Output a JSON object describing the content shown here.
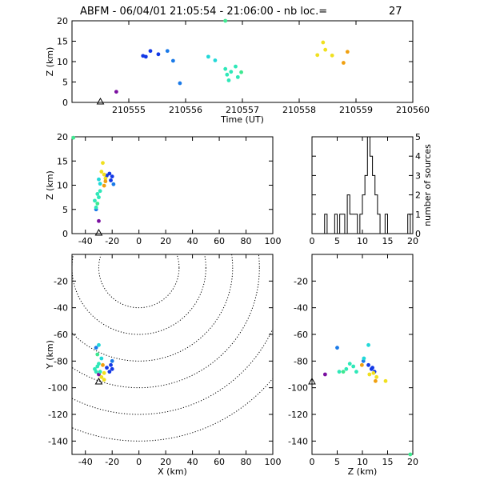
{
  "title": {
    "station": "ABFM",
    "date": "06/04/01",
    "start": "21:05:54",
    "end": "21:06:00",
    "count_label": "nb loc.=",
    "count": "27"
  },
  "colors": {
    "purple": "#7a0fa0",
    "blue": "#1238e6",
    "mid_blue": "#1a7ae8",
    "cyan": "#22d8d8",
    "teal": "#2ee8b8",
    "green": "#3ee890",
    "yellow": "#f0e020",
    "orange": "#f0a010"
  },
  "chart_data": [
    {
      "id": "time_height",
      "type": "scatter",
      "xlabel": "Time (UT)",
      "ylabel": "Z (km)",
      "xlim": [
        210554.0,
        210560.0
      ],
      "ylim": [
        0,
        20
      ],
      "xticks": [
        210555,
        210556,
        210557,
        210558,
        210559,
        210560
      ],
      "yticks": [
        0,
        5,
        10,
        15,
        20
      ],
      "points": [
        {
          "x": 210554.78,
          "y": 2.6,
          "c": "purple"
        },
        {
          "x": 210555.25,
          "y": 11.4,
          "c": "blue"
        },
        {
          "x": 210555.3,
          "y": 11.2,
          "c": "blue"
        },
        {
          "x": 210555.38,
          "y": 12.6,
          "c": "blue"
        },
        {
          "x": 210555.52,
          "y": 11.8,
          "c": "blue"
        },
        {
          "x": 210555.68,
          "y": 12.6,
          "c": "mid_blue"
        },
        {
          "x": 210555.78,
          "y": 10.2,
          "c": "mid_blue"
        },
        {
          "x": 210555.9,
          "y": 4.7,
          "c": "mid_blue"
        },
        {
          "x": 210556.4,
          "y": 11.2,
          "c": "cyan"
        },
        {
          "x": 210556.52,
          "y": 10.3,
          "c": "cyan"
        },
        {
          "x": 210556.7,
          "y": 8.2,
          "c": "teal"
        },
        {
          "x": 210556.73,
          "y": 6.8,
          "c": "teal"
        },
        {
          "x": 210556.76,
          "y": 5.4,
          "c": "teal"
        },
        {
          "x": 210556.8,
          "y": 7.5,
          "c": "teal"
        },
        {
          "x": 210556.88,
          "y": 8.8,
          "c": "teal"
        },
        {
          "x": 210556.92,
          "y": 6.2,
          "c": "teal"
        },
        {
          "x": 210556.98,
          "y": 7.4,
          "c": "green"
        },
        {
          "x": 210556.7,
          "y": 20.0,
          "c": "green"
        },
        {
          "x": 210558.32,
          "y": 11.6,
          "c": "yellow"
        },
        {
          "x": 210558.42,
          "y": 14.7,
          "c": "yellow"
        },
        {
          "x": 210558.46,
          "y": 12.9,
          "c": "yellow"
        },
        {
          "x": 210558.58,
          "y": 11.5,
          "c": "yellow"
        },
        {
          "x": 210558.78,
          "y": 9.7,
          "c": "orange"
        },
        {
          "x": 210558.85,
          "y": 12.4,
          "c": "orange"
        }
      ],
      "station": {
        "x": 210554.5,
        "y": 0
      }
    },
    {
      "id": "x_height",
      "type": "scatter",
      "xlabel": "",
      "ylabel": "Z (km)",
      "xlim": [
        -50,
        100
      ],
      "ylim": [
        0,
        20
      ],
      "xticks": [
        -40,
        -20,
        0,
        20,
        40,
        60,
        80,
        100
      ],
      "yticks": [
        0,
        5,
        10,
        15,
        20
      ],
      "points": [
        {
          "x": -30,
          "y": 2.6,
          "c": "purple"
        },
        {
          "x": -20,
          "y": 11.8,
          "c": "blue"
        },
        {
          "x": -21,
          "y": 11.0,
          "c": "blue"
        },
        {
          "x": -22,
          "y": 12.4,
          "c": "blue"
        },
        {
          "x": -24,
          "y": 12.0,
          "c": "blue"
        },
        {
          "x": -19,
          "y": 10.2,
          "c": "mid_blue"
        },
        {
          "x": -32,
          "y": 5.0,
          "c": "mid_blue"
        },
        {
          "x": -30,
          "y": 11.2,
          "c": "cyan"
        },
        {
          "x": -29,
          "y": 10.3,
          "c": "cyan"
        },
        {
          "x": -31,
          "y": 8.2,
          "c": "teal"
        },
        {
          "x": -33,
          "y": 6.8,
          "c": "teal"
        },
        {
          "x": -32,
          "y": 5.4,
          "c": "teal"
        },
        {
          "x": -30,
          "y": 7.5,
          "c": "teal"
        },
        {
          "x": -29,
          "y": 8.8,
          "c": "teal"
        },
        {
          "x": -31,
          "y": 6.2,
          "c": "green"
        },
        {
          "x": -49,
          "y": 19.8,
          "c": "green"
        },
        {
          "x": -28,
          "y": 12.8,
          "c": "yellow"
        },
        {
          "x": -27,
          "y": 14.6,
          "c": "yellow"
        },
        {
          "x": -26,
          "y": 12.2,
          "c": "yellow"
        },
        {
          "x": -25,
          "y": 11.4,
          "c": "yellow"
        },
        {
          "x": -26,
          "y": 9.9,
          "c": "orange"
        },
        {
          "x": -25,
          "y": 10.8,
          "c": "orange"
        }
      ],
      "station": {
        "x": -30,
        "y": 0
      }
    },
    {
      "id": "height_histogram",
      "type": "bar",
      "xlabel": "",
      "ylabel": "number of sources",
      "xlim": [
        0,
        20
      ],
      "ylim": [
        0,
        5
      ],
      "xticks": [
        0,
        5,
        10,
        15,
        20
      ],
      "yticks": [
        0,
        1,
        2,
        3,
        4,
        5
      ],
      "bin_width": 0.5,
      "bin_starts": [
        0,
        0.5,
        1,
        1.5,
        2,
        2.5,
        3,
        3.5,
        4,
        4.5,
        5,
        5.5,
        6,
        6.5,
        7,
        7.5,
        8,
        8.5,
        9,
        9.5,
        10,
        10.5,
        11,
        11.5,
        12,
        12.5,
        13,
        13.5,
        14,
        14.5,
        15,
        15.5,
        16,
        16.5,
        17,
        17.5,
        18,
        18.5,
        19,
        19.5
      ],
      "values": [
        0,
        0,
        0,
        0,
        0,
        1,
        0,
        0,
        0,
        1,
        0,
        1,
        1,
        0,
        2,
        1,
        1,
        1,
        0,
        1,
        2,
        3,
        5,
        4,
        3,
        2,
        1,
        0,
        0,
        1,
        0,
        0,
        0,
        0,
        0,
        0,
        0,
        0,
        1,
        0
      ]
    },
    {
      "id": "plan_view",
      "type": "scatter",
      "xlabel": "X (km)",
      "ylabel": "Y (km)",
      "xlim": [
        -50,
        100
      ],
      "ylim": [
        -150,
        0
      ],
      "xticks": [
        -40,
        -20,
        0,
        20,
        40,
        60,
        80,
        100
      ],
      "yticks": [
        -140,
        -120,
        -100,
        -80,
        -60,
        -40,
        -20
      ],
      "contour_center": {
        "x": 0,
        "y": -10
      },
      "contour_radii": [
        30,
        50,
        70,
        90,
        110,
        130
      ],
      "points": [
        {
          "x": -30,
          "y": -90,
          "c": "purple"
        },
        {
          "x": -20,
          "y": -86,
          "c": "blue"
        },
        {
          "x": -21,
          "y": -83,
          "c": "blue"
        },
        {
          "x": -22,
          "y": -88,
          "c": "blue"
        },
        {
          "x": -24,
          "y": -85,
          "c": "blue"
        },
        {
          "x": -20,
          "y": -80,
          "c": "mid_blue"
        },
        {
          "x": -32,
          "y": -70,
          "c": "mid_blue"
        },
        {
          "x": -30,
          "y": -68,
          "c": "cyan"
        },
        {
          "x": -28,
          "y": -78,
          "c": "cyan"
        },
        {
          "x": -31,
          "y": -84,
          "c": "teal"
        },
        {
          "x": -33,
          "y": -86,
          "c": "teal"
        },
        {
          "x": -32,
          "y": -88,
          "c": "teal"
        },
        {
          "x": -30,
          "y": -82,
          "c": "teal"
        },
        {
          "x": -29,
          "y": -88,
          "c": "teal"
        },
        {
          "x": -31,
          "y": -75,
          "c": "green"
        },
        {
          "x": -28,
          "y": -92,
          "c": "yellow"
        },
        {
          "x": -26,
          "y": -89,
          "c": "yellow"
        },
        {
          "x": -27,
          "y": -83,
          "c": "orange"
        },
        {
          "x": -26,
          "y": -94,
          "c": "yellow"
        }
      ],
      "station": {
        "x": -30,
        "y": -96
      }
    },
    {
      "id": "height_y",
      "type": "scatter",
      "xlabel": "Z (km)",
      "ylabel": "",
      "xlim": [
        0,
        20
      ],
      "ylim": [
        -150,
        0
      ],
      "xticks": [
        0,
        5,
        10,
        15,
        20
      ],
      "yticks": [
        -140,
        -120,
        -100,
        -80,
        -60,
        -40,
        -20
      ],
      "points": [
        {
          "x": 2.6,
          "y": -90,
          "c": "purple"
        },
        {
          "x": 11.8,
          "y": -86,
          "c": "blue"
        },
        {
          "x": 11.2,
          "y": -83,
          "c": "blue"
        },
        {
          "x": 12.4,
          "y": -88,
          "c": "blue"
        },
        {
          "x": 12.0,
          "y": -85,
          "c": "blue"
        },
        {
          "x": 10.2,
          "y": -80,
          "c": "mid_blue"
        },
        {
          "x": 5.0,
          "y": -70,
          "c": "mid_blue"
        },
        {
          "x": 11.2,
          "y": -68,
          "c": "cyan"
        },
        {
          "x": 10.3,
          "y": -78,
          "c": "cyan"
        },
        {
          "x": 8.2,
          "y": -84,
          "c": "teal"
        },
        {
          "x": 6.8,
          "y": -86,
          "c": "teal"
        },
        {
          "x": 5.4,
          "y": -88,
          "c": "teal"
        },
        {
          "x": 7.5,
          "y": -82,
          "c": "teal"
        },
        {
          "x": 8.8,
          "y": -88,
          "c": "teal"
        },
        {
          "x": 6.2,
          "y": -88,
          "c": "green"
        },
        {
          "x": 19.5,
          "y": -150,
          "c": "green"
        },
        {
          "x": 12.8,
          "y": -92,
          "c": "yellow"
        },
        {
          "x": 14.6,
          "y": -95,
          "c": "yellow"
        },
        {
          "x": 12.2,
          "y": -89,
          "c": "yellow"
        },
        {
          "x": 11.4,
          "y": -90,
          "c": "yellow"
        },
        {
          "x": 9.9,
          "y": -83,
          "c": "orange"
        },
        {
          "x": 12.6,
          "y": -95,
          "c": "orange"
        }
      ],
      "station": {
        "x": 0,
        "y": -96
      }
    }
  ]
}
